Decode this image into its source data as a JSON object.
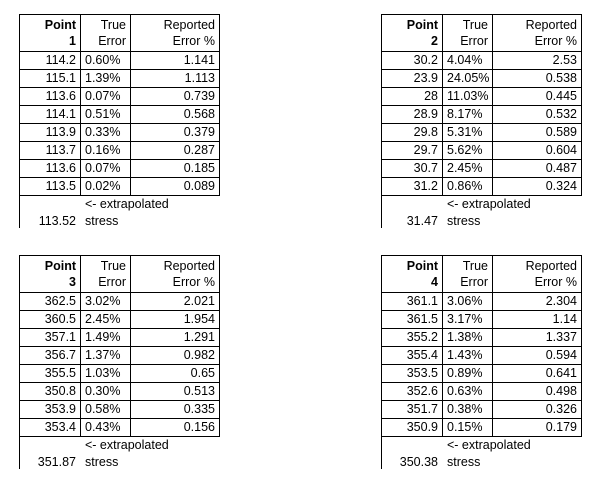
{
  "headers": {
    "point": "Point",
    "true_line1": "True",
    "true_line2": "Error",
    "reported_line1": "Reported",
    "reported_line2": "Error %"
  },
  "footer": {
    "arrow_text": "<- extrapolated",
    "stress_text": "stress"
  },
  "blocks": [
    {
      "point_number": "1",
      "rows": [
        [
          "114.2",
          "0.60%",
          "1.141"
        ],
        [
          "115.1",
          "1.39%",
          "1.113"
        ],
        [
          "113.6",
          "0.07%",
          "0.739"
        ],
        [
          "114.1",
          "0.51%",
          "0.568"
        ],
        [
          "113.9",
          "0.33%",
          "0.379"
        ],
        [
          "113.7",
          "0.16%",
          "0.287"
        ],
        [
          "113.6",
          "0.07%",
          "0.185"
        ],
        [
          "113.5",
          "0.02%",
          "0.089"
        ]
      ],
      "extrapolated_value": "113.52"
    },
    {
      "point_number": "2",
      "rows": [
        [
          "30.2",
          "4.04%",
          "2.53"
        ],
        [
          "23.9",
          "24.05%",
          "0.538"
        ],
        [
          "28",
          "11.03%",
          "0.445"
        ],
        [
          "28.9",
          "8.17%",
          "0.532"
        ],
        [
          "29.8",
          "5.31%",
          "0.589"
        ],
        [
          "29.7",
          "5.62%",
          "0.604"
        ],
        [
          "30.7",
          "2.45%",
          "0.487"
        ],
        [
          "31.2",
          "0.86%",
          "0.324"
        ]
      ],
      "extrapolated_value": "31.47"
    },
    {
      "point_number": "3",
      "rows": [
        [
          "362.5",
          "3.02%",
          "2.021"
        ],
        [
          "360.5",
          "2.45%",
          "1.954"
        ],
        [
          "357.1",
          "1.49%",
          "1.291"
        ],
        [
          "356.7",
          "1.37%",
          "0.982"
        ],
        [
          "355.5",
          "1.03%",
          "0.65"
        ],
        [
          "350.8",
          "0.30%",
          "0.513"
        ],
        [
          "353.9",
          "0.58%",
          "0.335"
        ],
        [
          "353.4",
          "0.43%",
          "0.156"
        ]
      ],
      "extrapolated_value": "351.87"
    },
    {
      "point_number": "4",
      "rows": [
        [
          "361.1",
          "3.06%",
          "2.304"
        ],
        [
          "361.5",
          "3.17%",
          "1.14"
        ],
        [
          "355.2",
          "1.38%",
          "1.337"
        ],
        [
          "355.4",
          "1.43%",
          "0.594"
        ],
        [
          "353.5",
          "0.89%",
          "0.641"
        ],
        [
          "352.6",
          "0.63%",
          "0.498"
        ],
        [
          "351.7",
          "0.38%",
          "0.326"
        ],
        [
          "350.9",
          "0.15%",
          "0.179"
        ]
      ],
      "extrapolated_value": "350.38"
    }
  ]
}
